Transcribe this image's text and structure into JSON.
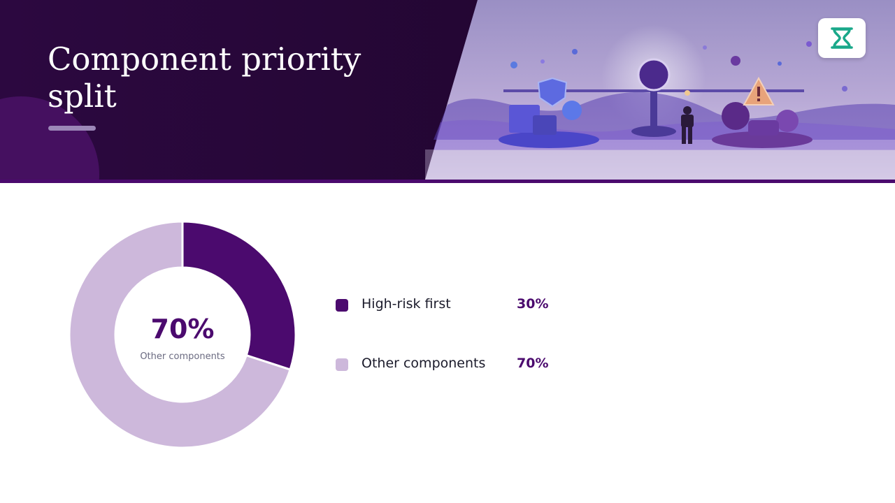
{
  "header": {
    "title": "Component priority split",
    "hero_image": "balance-scale-risk-illustration",
    "logo_icon": "hourglass-icon"
  },
  "colors": {
    "header_bg": "#2a0a3a",
    "primary": "#4b0a6e",
    "secondary": "#cdb8db",
    "logo": "#1aa88a"
  },
  "chart_data": {
    "type": "pie",
    "style": "donut",
    "categories": [
      "High-risk first",
      "Other components"
    ],
    "values": [
      30,
      70
    ],
    "value_labels": [
      "30%",
      "70%"
    ],
    "colors": [
      "#4b0a6e",
      "#cdb8db"
    ],
    "center_value": "70%",
    "center_label": "Other components",
    "legend_position": "right"
  }
}
